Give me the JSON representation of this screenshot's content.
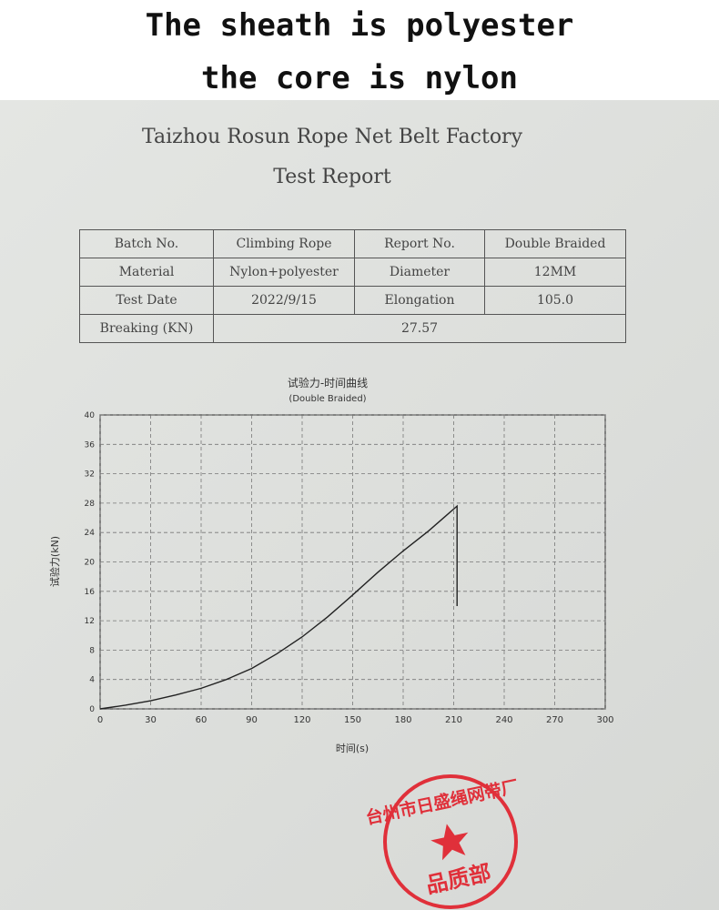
{
  "caption": [
    "The sheath is polyester",
    "the core is nylon"
  ],
  "header": {
    "company": "Taizhou Rosun Rope Net Belt Factory",
    "title": "Test Report"
  },
  "table": {
    "rows": [
      [
        "Batch No.",
        "Climbing Rope",
        "Report No.",
        "Double Braided"
      ],
      [
        "Material",
        "Nylon+polyester",
        "Diameter",
        "12MM"
      ],
      [
        "Test Date",
        "2022/9/15",
        "Elongation",
        "105.0"
      ],
      [
        "Breaking (KN)",
        "27.57"
      ]
    ]
  },
  "chart_data": {
    "type": "line",
    "title": "试验力-时间曲线",
    "subtitle": "(Double Braided)",
    "x_label": "时间(s)",
    "y_label": "试验力(kN)",
    "x": [
      0,
      15,
      30,
      45,
      60,
      75,
      90,
      105,
      120,
      135,
      150,
      165,
      180,
      195,
      205,
      212,
      212
    ],
    "series": [
      {
        "color": "#222222",
        "values": [
          0,
          0.5,
          1.1,
          1.9,
          2.8,
          4.0,
          5.5,
          7.5,
          9.8,
          12.5,
          15.5,
          18.6,
          21.5,
          24.2,
          26.2,
          27.6,
          14
        ]
      }
    ],
    "xlim": [
      0,
      300
    ],
    "xticks": [
      0,
      30,
      60,
      90,
      120,
      150,
      180,
      210,
      240,
      270,
      300
    ],
    "ylim": [
      0,
      40
    ],
    "yticks": [
      0,
      4,
      8,
      12,
      16,
      20,
      24,
      28,
      32,
      36,
      40
    ],
    "grid": true
  },
  "stamp": {
    "outer": "台州市日盛绳网带厂",
    "inner": "品质部"
  }
}
